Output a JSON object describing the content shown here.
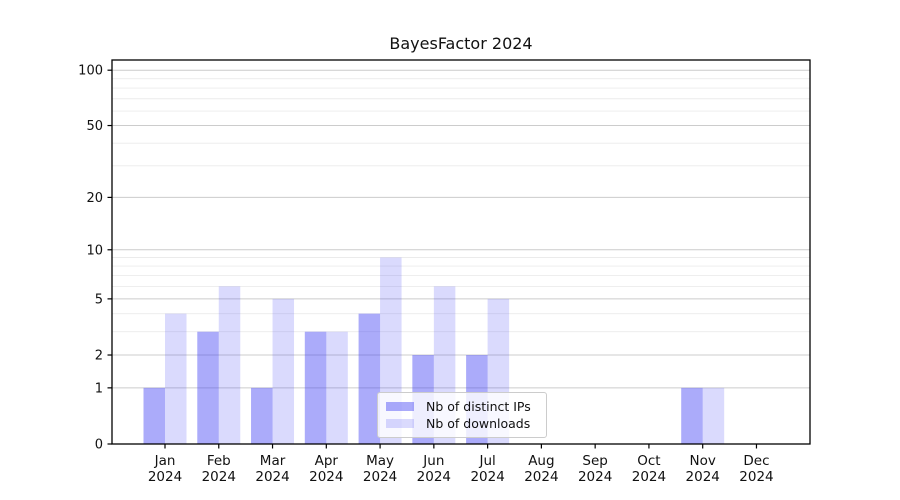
{
  "chart_data": {
    "type": "bar",
    "title": "BayesFactor 2024",
    "xlabel": "",
    "ylabel": "",
    "year": "2024",
    "categories": [
      "Jan",
      "Feb",
      "Mar",
      "Apr",
      "May",
      "Jun",
      "Jul",
      "Aug",
      "Sep",
      "Oct",
      "Nov",
      "Dec"
    ],
    "series": [
      {
        "name": "Nb of distinct IPs",
        "values": [
          1,
          3,
          1,
          3,
          4,
          2,
          2,
          0,
          0,
          0,
          1,
          0
        ],
        "color": "rgba(68,68,245,0.45)"
      },
      {
        "name": "Nb of downloads",
        "values": [
          4,
          6,
          5,
          3,
          9,
          6,
          5,
          0,
          0,
          0,
          1,
          0
        ],
        "color": "rgba(68,68,245,0.20)"
      }
    ],
    "yscale": "log1p",
    "ylim": [
      0,
      115
    ],
    "yticks": [
      0,
      1,
      2,
      5,
      10,
      20,
      50,
      100
    ],
    "minor_yticks": [
      3,
      4,
      6,
      7,
      8,
      9,
      30,
      40,
      60,
      70,
      80,
      90
    ],
    "grid": "on",
    "legend_position": "lower center"
  },
  "colors": {
    "grid_major": "#cccccc",
    "grid_minor": "#ebebeb",
    "spine": "#000000",
    "text": "#111111",
    "legend_bg": "rgba(255,255,255,0.8)",
    "legend_border": "#cccccc"
  }
}
